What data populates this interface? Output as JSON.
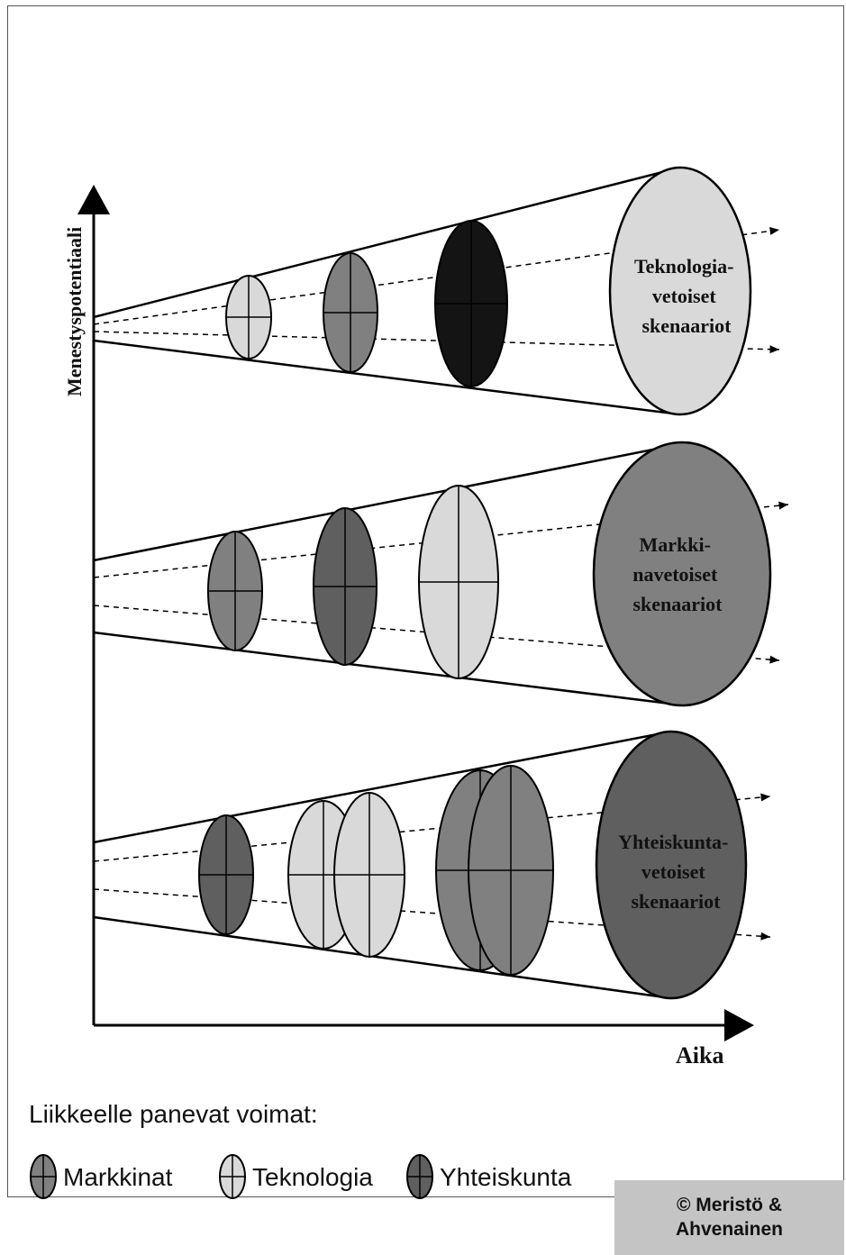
{
  "axes": {
    "y_label": "Menestyspotentiaali",
    "x_label": "Aika"
  },
  "colors": {
    "markkinat": "#808080",
    "teknologia": "#d9d9d9",
    "yhteiskunta": "#5f5f5f",
    "black": "#141414",
    "stroke": "#000000"
  },
  "cones": [
    {
      "label_lines": [
        "Teknologia-",
        "vetoiset",
        "skenaariot"
      ],
      "fill": "#d9d9d9"
    },
    {
      "label_lines": [
        "Markki-",
        "navetoiset",
        "skenaariot"
      ],
      "fill": "#808080"
    },
    {
      "label_lines": [
        "Yhteiskunta-",
        "vetoiset",
        "skenaariot"
      ],
      "fill": "#5f5f5f"
    }
  ],
  "legend": {
    "title": "Liikkeelle panevat voimat:",
    "items": [
      {
        "label": "Markkinat",
        "icon": "markkinat-ellipse-icon",
        "fill": "#808080"
      },
      {
        "label": "Teknologia",
        "icon": "teknologia-ellipse-icon",
        "fill": "#d9d9d9"
      },
      {
        "label": "Yhteiskunta",
        "icon": "yhteiskunta-ellipse-icon",
        "fill": "#5f5f5f"
      }
    ]
  },
  "copyright": [
    "© Meristö &",
    "Ahvenainen"
  ]
}
